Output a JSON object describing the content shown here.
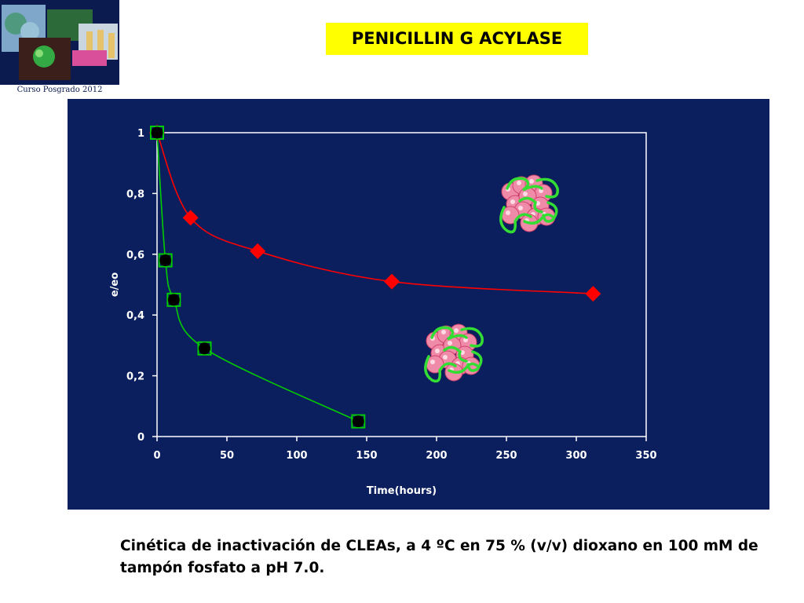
{
  "header": {
    "logo_caption": "Curso Posgrado 2012",
    "title": "PENICILLIN G ACYLASE"
  },
  "caption": "Cinética de inactivación de CLEAs, a 4 ºC en 75 % (v/v) dioxano en 100 mM de tampón fosfato a pH 7.0.",
  "colors": {
    "panel_background": "#0b1f5e",
    "title_highlight": "#ffff00",
    "red_series": "#ff0000",
    "green_series": "#00cc00",
    "axis": "#ffffff"
  },
  "chart_data": {
    "type": "scatter",
    "title": "",
    "xlabel": "Time(hours)",
    "ylabel": "e/eo",
    "xlim": [
      0,
      350
    ],
    "ylim": [
      0,
      1
    ],
    "x_ticks": [
      "0",
      "50",
      "100",
      "150",
      "200",
      "250",
      "300",
      "350"
    ],
    "y_ticks": [
      "0",
      "0,2",
      "0,4",
      "0,6",
      "0,8",
      "1"
    ],
    "x_tick_values": [
      0,
      50,
      100,
      150,
      200,
      250,
      300,
      350
    ],
    "y_tick_values": [
      0,
      0.2,
      0.4,
      0.6,
      0.8,
      1
    ],
    "grid": false,
    "series": [
      {
        "marker": "diamond",
        "color": "#ff0000",
        "x": [
          0,
          24,
          72,
          168,
          312
        ],
        "y": [
          1.0,
          0.72,
          0.61,
          0.51,
          0.47
        ]
      },
      {
        "marker": "circle-in-square",
        "color": "#00cc00",
        "x": [
          0,
          6,
          12,
          34,
          144
        ],
        "y": [
          1.0,
          0.58,
          0.45,
          0.29,
          0.05
        ]
      }
    ],
    "annotations": [
      "clea-aggregate-illustration",
      "clea-aggregate-illustration"
    ]
  }
}
